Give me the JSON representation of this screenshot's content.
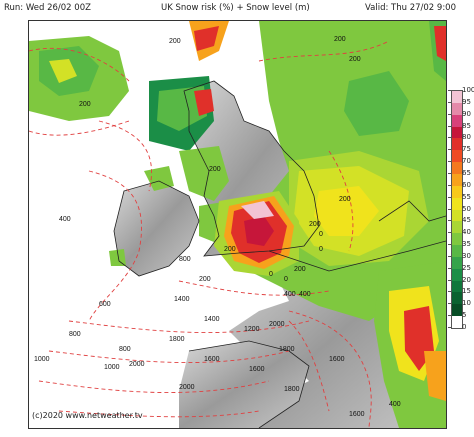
{
  "header": {
    "run": "Run: Wed 26/02 00Z",
    "title": "UK Snow risk (%) + Snow level (m)",
    "valid": "Valid: Thu 27/02 9:00"
  },
  "footer": {
    "copyright": "(c)2020 www.netweather.tv"
  },
  "legend": {
    "labels": [
      "100",
      "95",
      "90",
      "85",
      "80",
      "75",
      "70",
      "65",
      "60",
      "55",
      "50",
      "45",
      "40",
      "35",
      "30",
      "25",
      "20",
      "15",
      "10",
      "5",
      "0"
    ],
    "colors": [
      "#ffffff",
      "#f2c4d4",
      "#e48aa9",
      "#d8417a",
      "#c6163a",
      "#e0302a",
      "#ef4c24",
      "#f4791f",
      "#f7a21c",
      "#f8c91a",
      "#f0e31c",
      "#d3e126",
      "#aad634",
      "#7fc83f",
      "#58b845",
      "#35a34a",
      "#1b8e47",
      "#10773c",
      "#0a6230",
      "#074d25",
      "#ffffff"
    ]
  },
  "contour_labels": [
    "200",
    "200",
    "200",
    "200",
    "200",
    "400",
    "200",
    "200",
    "200",
    "200",
    "0",
    "0",
    "0",
    "0",
    "200",
    "400",
    "400",
    "600",
    "800",
    "1000",
    "1000",
    "1200",
    "1400",
    "1400",
    "1600",
    "1600",
    "1600",
    "1800",
    "1800",
    "1800",
    "2000",
    "2000",
    "2000",
    "800",
    "800",
    "1600",
    "400"
  ]
}
